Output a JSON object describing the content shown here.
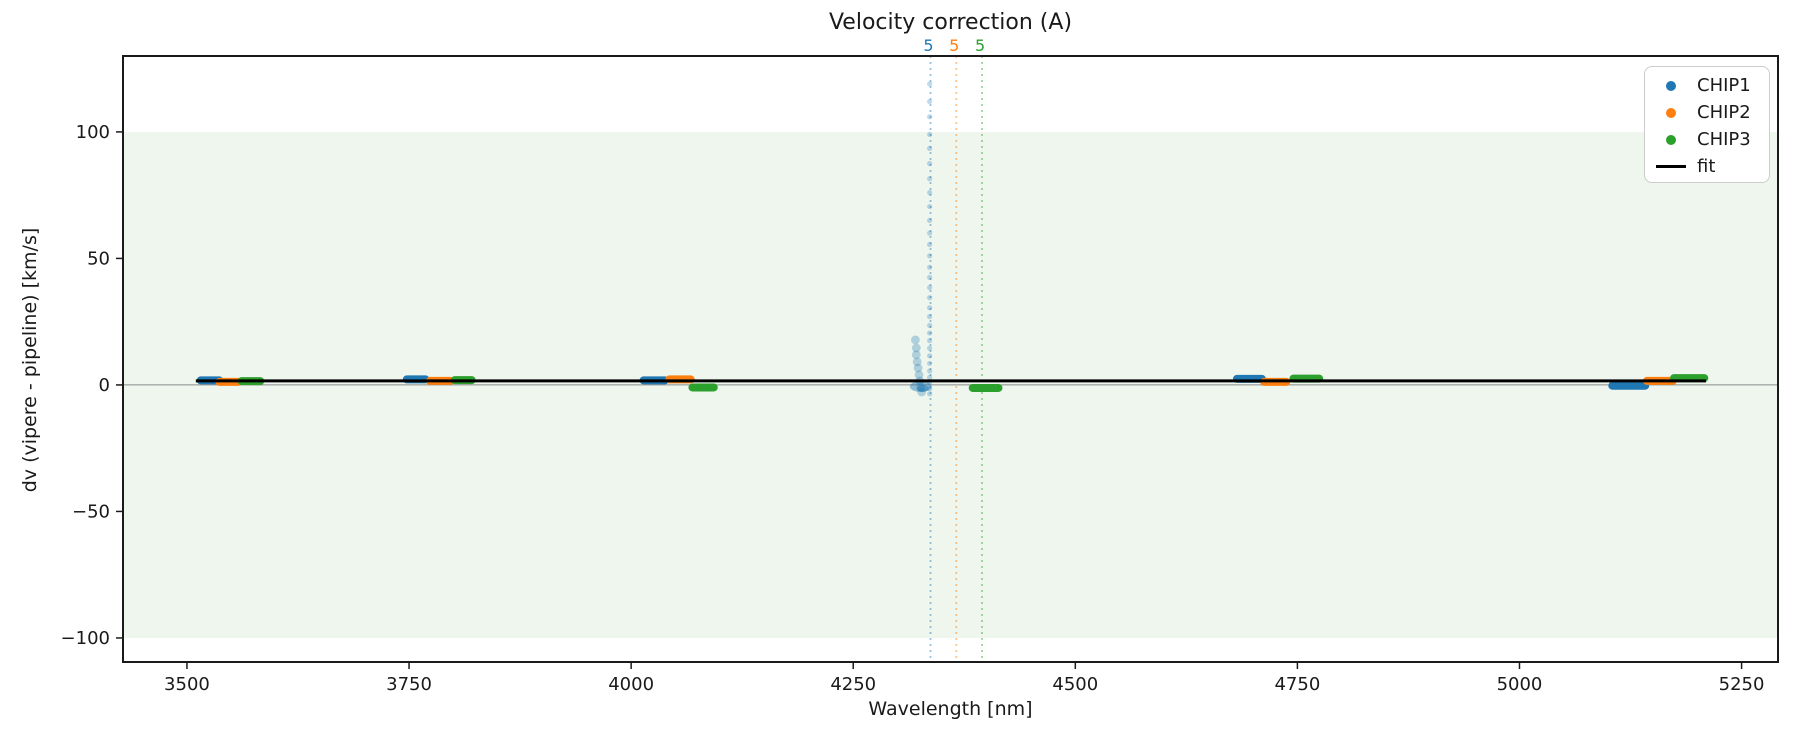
{
  "chart": {
    "title": "Velocity correction (A)",
    "xlabel": "Wavelength [nm]",
    "ylabel": "dv (vipere - pipeline) [km/s]"
  },
  "chart_data": {
    "type": "scatter",
    "title": "Velocity correction (A)",
    "xlabel": "Wavelength [nm]",
    "ylabel": "dv (vipere - pipeline) [km/s]",
    "xlim": [
      3428,
      5291
    ],
    "ylim": [
      -109.5,
      130
    ],
    "x_ticks": [
      3500,
      3750,
      4000,
      4250,
      4500,
      4750,
      5000,
      5250
    ],
    "x_tick_labels": [
      "3500",
      "3750",
      "4000",
      "4250",
      "4500",
      "4750",
      "5000",
      "5250"
    ],
    "y_ticks": [
      100,
      50,
      0,
      -50,
      -100
    ],
    "y_tick_labels": [
      "100",
      "50",
      "0",
      "−50",
      "−100"
    ],
    "grid": false,
    "legend_position": "upper right",
    "band": {
      "from": -100,
      "to": 100,
      "color": "#eef6ed"
    },
    "zero_line": {
      "y": 0,
      "color": "#8a8a8a"
    },
    "fit": {
      "label": "fit",
      "color": "#000000",
      "x_start": 3510,
      "x_end": 5210,
      "dv": 1.6
    },
    "series": [
      {
        "name": "CHIP1",
        "color": "#1f77b4",
        "clusters": [
          [
            3526,
            1.8,
            30
          ],
          [
            3758,
            2.2,
            30
          ],
          [
            4026,
            1.8,
            33
          ],
          [
            4696,
            2.4,
            37
          ],
          [
            5123,
            -0.3,
            46
          ]
        ]
      },
      {
        "name": "CHIP2",
        "color": "#ff7f0e",
        "clusters": [
          [
            3547,
            1.2,
            30
          ],
          [
            3785,
            1.6,
            32
          ],
          [
            4055,
            2.2,
            33
          ],
          [
            4725,
            1.2,
            34
          ],
          [
            5158,
            1.6,
            38
          ]
        ]
      },
      {
        "name": "CHIP3",
        "color": "#2ca02c",
        "clusters": [
          [
            3572,
            1.5,
            30
          ],
          [
            3811,
            1.9,
            28
          ],
          [
            4081,
            -1.0,
            33
          ],
          [
            4399,
            -1.2,
            38
          ],
          [
            4760,
            2.5,
            38
          ],
          [
            5191,
            2.7,
            43
          ]
        ]
      }
    ],
    "vlines": [
      {
        "x": 4337,
        "label": "5",
        "color": "#1f77b4"
      },
      {
        "x": 4366,
        "label": "5",
        "color": "#ff7f0e"
      },
      {
        "x": 4395,
        "label": "5",
        "color": "#2ca02c"
      }
    ],
    "convergence_trail": {
      "color": "#1f77b4",
      "x": 4336,
      "dv_values": [
        119,
        112,
        106,
        99,
        93.5,
        87.5,
        81.5,
        76,
        70.5,
        65,
        60,
        55.5,
        51,
        46.5,
        42.5,
        38.5,
        34.5,
        30.5,
        27,
        23.5,
        20.5,
        17.5,
        14.5,
        11.5,
        8.5,
        5.5,
        3,
        1,
        -1.5,
        -3.5
      ],
      "left_arm": [
        [
          4320,
          17.8
        ],
        [
          4321,
          14.6
        ],
        [
          4321,
          11.9
        ],
        [
          4322,
          9.1
        ],
        [
          4323,
          6.7
        ],
        [
          4324,
          4.0
        ],
        [
          4325,
          1.6
        ],
        [
          4326,
          -0.8
        ],
        [
          4327,
          -2.8
        ]
      ],
      "end_blob": {
        "x": 4326,
        "dv": -0.6
      }
    }
  }
}
